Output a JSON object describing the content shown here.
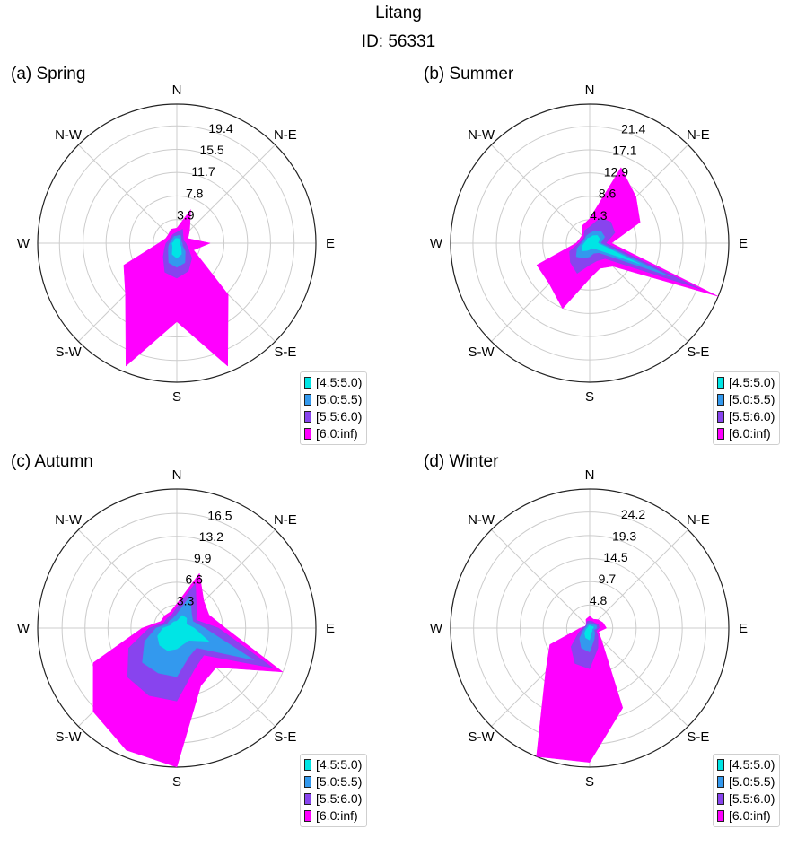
{
  "figure": {
    "title": "Litang",
    "subtitle": "ID: 56331"
  },
  "chart_data": [
    {
      "type": "radar",
      "panel_label": "(a) Spring",
      "directions": [
        "N",
        "N-E",
        "E",
        "S-E",
        "S",
        "S-W",
        "W",
        "N-W"
      ],
      "rings": [
        3.9,
        7.8,
        11.7,
        15.5,
        19.4
      ],
      "r_max": 23,
      "angles_deg": [
        0,
        22.5,
        45,
        67.5,
        90,
        112.5,
        135,
        157.5,
        180,
        202.5,
        225,
        247.5,
        270,
        292.5,
        315,
        337.5
      ],
      "series": [
        {
          "name": "[4.5:5.0)",
          "color": "#00e5e5",
          "values": [
            0.8,
            0.8,
            0.8,
            0.5,
            0.5,
            0.6,
            1.0,
            2.0,
            2.5,
            2.0,
            1.0,
            0.8,
            0.8,
            0.6,
            0.6,
            0.8
          ]
        },
        {
          "name": "[5.0:5.5)",
          "color": "#3399ee",
          "values": [
            1.2,
            1.5,
            1.0,
            0.8,
            0.9,
            1.0,
            2.0,
            3.5,
            4.0,
            3.5,
            2.0,
            1.5,
            1.2,
            1.0,
            1.0,
            1.2
          ]
        },
        {
          "name": "[5.5:6.0)",
          "color": "#8844ee",
          "values": [
            1.8,
            2.5,
            1.5,
            1.2,
            1.5,
            2.0,
            3.5,
            5.0,
            5.8,
            5.2,
            3.2,
            2.2,
            1.8,
            1.4,
            1.4,
            1.6
          ]
        },
        {
          "name": "[6.0:inf)",
          "color": "#ff00ff",
          "values": [
            2.5,
            6.0,
            3.0,
            2.0,
            5.5,
            3.0,
            12.0,
            22.0,
            13.0,
            22.0,
            12.0,
            9.5,
            3.0,
            2.0,
            2.0,
            2.5
          ]
        }
      ]
    },
    {
      "type": "radar",
      "panel_label": "(b) Summer",
      "directions": [
        "N",
        "N-E",
        "E",
        "S-E",
        "S",
        "S-W",
        "W",
        "N-W"
      ],
      "rings": [
        4.3,
        8.6,
        12.9,
        17.1,
        21.4
      ],
      "r_max": 25.5,
      "angles_deg": [
        0,
        22.5,
        45,
        67.5,
        90,
        112.5,
        135,
        157.5,
        180,
        202.5,
        225,
        247.5,
        270,
        292.5,
        315,
        337.5
      ],
      "series": [
        {
          "name": "[4.5:5.0)",
          "color": "#00e5e5",
          "values": [
            1.0,
            1.5,
            2.0,
            2.0,
            1.5,
            10.0,
            1.5,
            1.0,
            1.2,
            1.5,
            2.0,
            1.5,
            1.0,
            0.8,
            0.8,
            1.0
          ]
        },
        {
          "name": "[5.0:5.5)",
          "color": "#3399ee",
          "values": [
            1.8,
            2.5,
            3.0,
            3.0,
            2.0,
            16.0,
            2.5,
            2.0,
            2.5,
            3.0,
            3.5,
            2.5,
            1.5,
            1.2,
            1.2,
            1.5
          ]
        },
        {
          "name": "[5.5:6.0)",
          "color": "#8844ee",
          "values": [
            3.0,
            5.0,
            5.5,
            5.0,
            3.0,
            22.0,
            4.0,
            3.5,
            4.0,
            6.0,
            5.0,
            4.0,
            2.0,
            1.5,
            1.5,
            2.5
          ]
        },
        {
          "name": "[6.0:inf)",
          "color": "#ff00ff",
          "values": [
            4.5,
            15.0,
            12.0,
            10.0,
            4.0,
            25.5,
            6.0,
            5.0,
            6.5,
            13.0,
            10.5,
            10.5,
            2.5,
            2.0,
            2.0,
            3.5
          ]
        }
      ]
    },
    {
      "type": "radar",
      "panel_label": "(c) Autumn",
      "directions": [
        "N",
        "N-E",
        "E",
        "S-E",
        "S",
        "S-W",
        "W",
        "N-W"
      ],
      "rings": [
        3.3,
        6.6,
        9.9,
        13.2,
        16.5
      ],
      "r_max": 20,
      "angles_deg": [
        0,
        22.5,
        45,
        67.5,
        90,
        112.5,
        135,
        157.5,
        180,
        202.5,
        225,
        247.5,
        270,
        292.5,
        315,
        337.5
      ],
      "series": [
        {
          "name": "[4.5:5.0)",
          "color": "#00e5e5",
          "values": [
            1.0,
            2.0,
            2.0,
            1.5,
            2.5,
            5.0,
            2.5,
            2.5,
            3.0,
            3.5,
            3.5,
            3.0,
            2.0,
            1.0,
            1.0,
            1.0
          ]
        },
        {
          "name": "[5.0:5.5)",
          "color": "#3399ee",
          "values": [
            2.0,
            5.0,
            3.0,
            2.5,
            4.0,
            12.0,
            4.0,
            4.5,
            7.0,
            7.0,
            7.0,
            5.0,
            3.0,
            1.5,
            1.5,
            1.5
          ]
        },
        {
          "name": "[5.5:6.0)",
          "color": "#8844ee",
          "values": [
            3.0,
            7.0,
            4.0,
            3.0,
            6.0,
            15.0,
            5.5,
            6.5,
            10.5,
            10.5,
            10.0,
            7.5,
            4.0,
            2.0,
            2.0,
            2.0
          ]
        },
        {
          "name": "[6.0:inf)",
          "color": "#ff00ff",
          "values": [
            3.5,
            8.5,
            5.5,
            5.0,
            7.0,
            16.5,
            8.0,
            9.0,
            20.0,
            19.0,
            17.0,
            13.0,
            5.0,
            2.5,
            2.5,
            2.5
          ]
        }
      ]
    },
    {
      "type": "radar",
      "panel_label": "(d) Winter",
      "directions": [
        "N",
        "N-E",
        "E",
        "S-E",
        "S",
        "S-W",
        "W",
        "N-W"
      ],
      "rings": [
        4.8,
        9.7,
        14.5,
        19.3,
        24.2
      ],
      "r_max": 29,
      "angles_deg": [
        0,
        22.5,
        45,
        67.5,
        90,
        112.5,
        135,
        157.5,
        180,
        202.5,
        225,
        247.5,
        270,
        292.5,
        315,
        337.5
      ],
      "series": [
        {
          "name": "[4.5:5.0)",
          "color": "#00e5e5",
          "values": [
            0.5,
            0.5,
            0.5,
            0.8,
            0.8,
            0.5,
            0.8,
            1.0,
            2.5,
            2.2,
            1.5,
            0.8,
            0.5,
            0.4,
            0.4,
            0.5
          ]
        },
        {
          "name": "[5.0:5.5)",
          "color": "#3399ee",
          "values": [
            1.0,
            1.0,
            1.0,
            1.5,
            1.5,
            1.0,
            1.5,
            2.5,
            5.0,
            4.5,
            3.0,
            1.5,
            1.0,
            0.8,
            0.8,
            1.0
          ]
        },
        {
          "name": "[5.5:6.0)",
          "color": "#8844ee",
          "values": [
            1.5,
            1.5,
            1.5,
            2.0,
            2.0,
            1.5,
            2.5,
            4.5,
            8.5,
            8.0,
            5.5,
            2.5,
            1.5,
            1.0,
            1.0,
            1.5
          ]
        },
        {
          "name": "[6.0:inf)",
          "color": "#ff00ff",
          "values": [
            2.5,
            2.0,
            2.5,
            3.0,
            3.5,
            2.0,
            3.5,
            18.0,
            28.0,
            29.0,
            13.0,
            9.0,
            2.0,
            1.0,
            1.0,
            2.0
          ]
        }
      ]
    }
  ]
}
